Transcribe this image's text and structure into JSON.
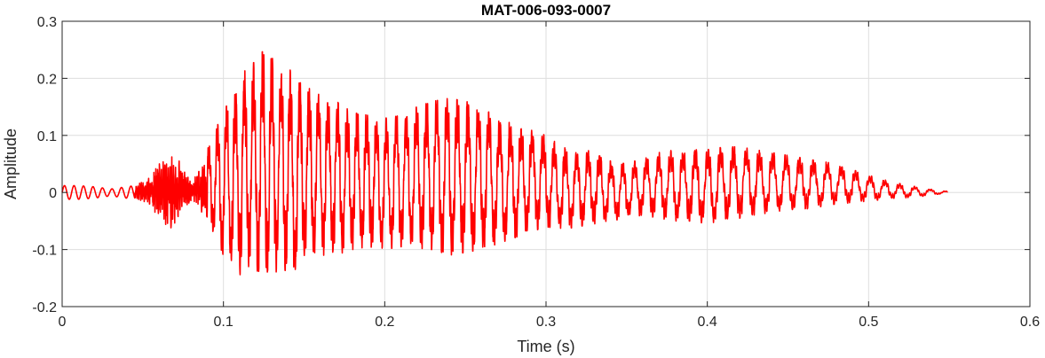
{
  "chart_data": {
    "type": "line",
    "title": "MAT-006-093-0007",
    "xlabel": "Time (s)",
    "ylabel": "Amplitude",
    "xlim": [
      0,
      0.6
    ],
    "ylim": [
      -0.2,
      0.3
    ],
    "xticks": [
      0,
      0.1,
      0.2,
      0.3,
      0.4,
      0.5,
      0.6
    ],
    "xtick_labels": [
      "0",
      "0.1",
      "0.2",
      "0.3",
      "0.4",
      "0.5",
      "0.6"
    ],
    "yticks": [
      -0.2,
      -0.1,
      0,
      0.1,
      0.2,
      0.3
    ],
    "ytick_labels": [
      "-0.2",
      "-0.1",
      "0",
      "0.1",
      "0.2",
      "0.3"
    ],
    "grid": true,
    "line_color": "#ff0000",
    "signal_end": 0.549,
    "envelope": {
      "t": [
        0,
        0.01,
        0.02,
        0.03,
        0.045,
        0.055,
        0.06,
        0.065,
        0.07,
        0.075,
        0.08,
        0.085,
        0.09,
        0.095,
        0.1,
        0.105,
        0.11,
        0.115,
        0.12,
        0.125,
        0.13,
        0.135,
        0.14,
        0.145,
        0.15,
        0.16,
        0.17,
        0.18,
        0.19,
        0.2,
        0.21,
        0.22,
        0.23,
        0.24,
        0.25,
        0.26,
        0.27,
        0.28,
        0.29,
        0.3,
        0.31,
        0.32,
        0.33,
        0.34,
        0.35,
        0.36,
        0.37,
        0.38,
        0.39,
        0.4,
        0.41,
        0.42,
        0.43,
        0.44,
        0.45,
        0.46,
        0.47,
        0.48,
        0.49,
        0.5,
        0.51,
        0.52,
        0.53,
        0.54,
        0.549
      ],
      "max": [
        0.012,
        0.012,
        0.01,
        0.006,
        0.012,
        0.03,
        0.055,
        0.065,
        0.07,
        0.045,
        0.02,
        0.04,
        0.075,
        0.11,
        0.14,
        0.17,
        0.2,
        0.22,
        0.23,
        0.25,
        0.24,
        0.215,
        0.22,
        0.2,
        0.19,
        0.17,
        0.16,
        0.14,
        0.135,
        0.13,
        0.135,
        0.15,
        0.16,
        0.165,
        0.16,
        0.15,
        0.13,
        0.12,
        0.11,
        0.1,
        0.08,
        0.07,
        0.075,
        0.055,
        0.05,
        0.06,
        0.07,
        0.075,
        0.075,
        0.075,
        0.08,
        0.08,
        0.075,
        0.07,
        0.065,
        0.06,
        0.055,
        0.05,
        0.04,
        0.03,
        0.022,
        0.015,
        0.01,
        0.005,
        0.002
      ],
      "min": [
        -0.012,
        -0.012,
        -0.01,
        -0.006,
        -0.012,
        -0.025,
        -0.045,
        -0.07,
        -0.065,
        -0.04,
        -0.015,
        -0.03,
        -0.06,
        -0.085,
        -0.11,
        -0.13,
        -0.145,
        -0.13,
        -0.14,
        -0.145,
        -0.15,
        -0.13,
        -0.14,
        -0.155,
        -0.12,
        -0.11,
        -0.11,
        -0.1,
        -0.095,
        -0.1,
        -0.095,
        -0.1,
        -0.1,
        -0.11,
        -0.105,
        -0.1,
        -0.09,
        -0.08,
        -0.07,
        -0.06,
        -0.065,
        -0.06,
        -0.055,
        -0.05,
        -0.045,
        -0.04,
        -0.045,
        -0.05,
        -0.05,
        -0.055,
        -0.05,
        -0.045,
        -0.04,
        -0.035,
        -0.03,
        -0.03,
        -0.025,
        -0.02,
        -0.018,
        -0.015,
        -0.012,
        -0.01,
        -0.008,
        -0.004,
        -0.002
      ]
    }
  }
}
